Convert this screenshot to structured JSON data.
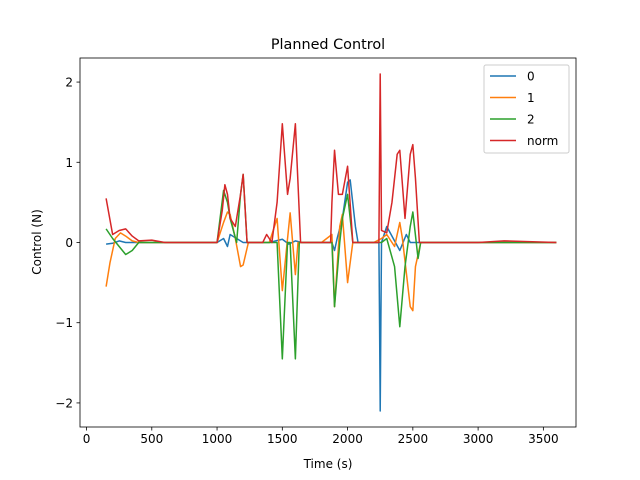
{
  "chart_data": {
    "type": "line",
    "title": "Planned Control",
    "xlabel": "Time (s)",
    "ylabel": "Control (N)",
    "xlim": [
      -50,
      3750
    ],
    "ylim": [
      -2.3,
      2.3
    ],
    "xticks": [
      0,
      500,
      1000,
      1500,
      2000,
      2500,
      3000,
      3500
    ],
    "yticks": [
      -2,
      -1,
      0,
      1,
      2
    ],
    "ytick_labels": [
      "−2",
      "−1",
      "0",
      "1",
      "2"
    ],
    "legend_position": "top-right",
    "grid": false,
    "series": [
      {
        "name": "0",
        "color": "#1f77b4",
        "points": [
          [
            150,
            -0.02
          ],
          [
            200,
            -0.01
          ],
          [
            250,
            0.02
          ],
          [
            300,
            0.0
          ],
          [
            350,
            0.0
          ],
          [
            750,
            0.0
          ],
          [
            1000,
            0.0
          ],
          [
            1050,
            0.05
          ],
          [
            1080,
            -0.05
          ],
          [
            1100,
            0.1
          ],
          [
            1150,
            0.05
          ],
          [
            1200,
            0.0
          ],
          [
            1400,
            0.0
          ],
          [
            1450,
            0.02
          ],
          [
            1500,
            0.04
          ],
          [
            1550,
            -0.02
          ],
          [
            1600,
            0.02
          ],
          [
            1650,
            0.0
          ],
          [
            1800,
            0.0
          ],
          [
            1880,
            0.0
          ],
          [
            1900,
            -0.1
          ],
          [
            1920,
            0.05
          ],
          [
            1960,
            0.3
          ],
          [
            2000,
            0.75
          ],
          [
            2020,
            0.78
          ],
          [
            2060,
            0.2
          ],
          [
            2080,
            0.0
          ],
          [
            2200,
            0.0
          ],
          [
            2240,
            0.0
          ],
          [
            2245,
            -1.0
          ],
          [
            2250,
            -2.1
          ],
          [
            2255,
            -1.0
          ],
          [
            2260,
            0.0
          ],
          [
            2300,
            0.2
          ],
          [
            2350,
            0.05
          ],
          [
            2400,
            -0.1
          ],
          [
            2450,
            0.1
          ],
          [
            2480,
            0.0
          ],
          [
            2520,
            0.0
          ],
          [
            2600,
            0.0
          ],
          [
            3000,
            0.0
          ],
          [
            3600,
            0.0
          ]
        ]
      },
      {
        "name": "1",
        "color": "#ff7f0e",
        "points": [
          [
            150,
            -0.55
          ],
          [
            180,
            -0.25
          ],
          [
            220,
            0.05
          ],
          [
            260,
            0.12
          ],
          [
            300,
            0.08
          ],
          [
            350,
            0.02
          ],
          [
            400,
            0.0
          ],
          [
            500,
            0.0
          ],
          [
            600,
            0.0
          ],
          [
            1000,
            0.0
          ],
          [
            1050,
            0.25
          ],
          [
            1080,
            0.38
          ],
          [
            1100,
            0.35
          ],
          [
            1140,
            0.05
          ],
          [
            1180,
            -0.3
          ],
          [
            1200,
            -0.28
          ],
          [
            1240,
            0.0
          ],
          [
            1400,
            0.0
          ],
          [
            1460,
            0.3
          ],
          [
            1500,
            -0.6
          ],
          [
            1560,
            0.37
          ],
          [
            1600,
            -0.4
          ],
          [
            1620,
            0.0
          ],
          [
            1800,
            0.0
          ],
          [
            1880,
            0.1
          ],
          [
            1900,
            -0.8
          ],
          [
            1940,
            0.2
          ],
          [
            1960,
            0.35
          ],
          [
            2000,
            -0.5
          ],
          [
            2040,
            0.0
          ],
          [
            2200,
            0.0
          ],
          [
            2260,
            0.05
          ],
          [
            2300,
            0.1
          ],
          [
            2360,
            -0.05
          ],
          [
            2400,
            0.25
          ],
          [
            2420,
            0.05
          ],
          [
            2480,
            -0.8
          ],
          [
            2500,
            -0.85
          ],
          [
            2520,
            -0.3
          ],
          [
            2560,
            0.0
          ],
          [
            3000,
            0.0
          ],
          [
            3600,
            0.0
          ]
        ]
      },
      {
        "name": "2",
        "color": "#2ca02c",
        "points": [
          [
            150,
            0.17
          ],
          [
            200,
            0.05
          ],
          [
            250,
            -0.05
          ],
          [
            300,
            -0.15
          ],
          [
            350,
            -0.1
          ],
          [
            400,
            0.0
          ],
          [
            500,
            0.0
          ],
          [
            600,
            0.0
          ],
          [
            1000,
            0.0
          ],
          [
            1050,
            0.65
          ],
          [
            1080,
            0.5
          ],
          [
            1100,
            0.3
          ],
          [
            1150,
            0.0
          ],
          [
            1180,
            0.6
          ],
          [
            1200,
            0.85
          ],
          [
            1230,
            0.0
          ],
          [
            1400,
            0.0
          ],
          [
            1460,
            0.0
          ],
          [
            1500,
            -1.45
          ],
          [
            1540,
            0.0
          ],
          [
            1560,
            0.0
          ],
          [
            1600,
            -1.45
          ],
          [
            1630,
            0.0
          ],
          [
            1800,
            0.0
          ],
          [
            1880,
            0.0
          ],
          [
            1900,
            -0.8
          ],
          [
            1940,
            0.0
          ],
          [
            1960,
            0.3
          ],
          [
            2000,
            0.6
          ],
          [
            2040,
            0.0
          ],
          [
            2200,
            0.0
          ],
          [
            2260,
            0.0
          ],
          [
            2300,
            0.05
          ],
          [
            2360,
            -0.3
          ],
          [
            2400,
            -1.05
          ],
          [
            2440,
            -0.3
          ],
          [
            2480,
            0.2
          ],
          [
            2500,
            0.38
          ],
          [
            2540,
            -0.2
          ],
          [
            2560,
            0.0
          ],
          [
            3000,
            0.0
          ],
          [
            3600,
            0.0
          ]
        ]
      },
      {
        "name": "norm",
        "color": "#d62728",
        "points": [
          [
            150,
            0.55
          ],
          [
            200,
            0.1
          ],
          [
            250,
            0.15
          ],
          [
            300,
            0.17
          ],
          [
            350,
            0.08
          ],
          [
            400,
            0.02
          ],
          [
            500,
            0.03
          ],
          [
            600,
            0.0
          ],
          [
            1000,
            0.0
          ],
          [
            1040,
            0.4
          ],
          [
            1060,
            0.72
          ],
          [
            1080,
            0.6
          ],
          [
            1100,
            0.3
          ],
          [
            1140,
            0.2
          ],
          [
            1180,
            0.6
          ],
          [
            1200,
            0.85
          ],
          [
            1230,
            0.0
          ],
          [
            1350,
            0.0
          ],
          [
            1380,
            0.1
          ],
          [
            1420,
            0.0
          ],
          [
            1460,
            0.5
          ],
          [
            1500,
            1.48
          ],
          [
            1540,
            0.6
          ],
          [
            1560,
            0.8
          ],
          [
            1600,
            1.48
          ],
          [
            1640,
            0.0
          ],
          [
            1800,
            0.0
          ],
          [
            1870,
            0.0
          ],
          [
            1880,
            0.5
          ],
          [
            1900,
            1.15
          ],
          [
            1930,
            0.6
          ],
          [
            1960,
            0.6
          ],
          [
            2000,
            0.95
          ],
          [
            2040,
            0.0
          ],
          [
            2200,
            0.0
          ],
          [
            2240,
            0.0
          ],
          [
            2250,
            2.1
          ],
          [
            2260,
            0.15
          ],
          [
            2300,
            0.12
          ],
          [
            2340,
            0.5
          ],
          [
            2380,
            1.1
          ],
          [
            2400,
            1.15
          ],
          [
            2440,
            0.3
          ],
          [
            2480,
            1.1
          ],
          [
            2500,
            1.22
          ],
          [
            2520,
            0.8
          ],
          [
            2550,
            0.0
          ],
          [
            3000,
            0.0
          ],
          [
            3200,
            0.02
          ],
          [
            3600,
            0.0
          ]
        ]
      }
    ]
  }
}
